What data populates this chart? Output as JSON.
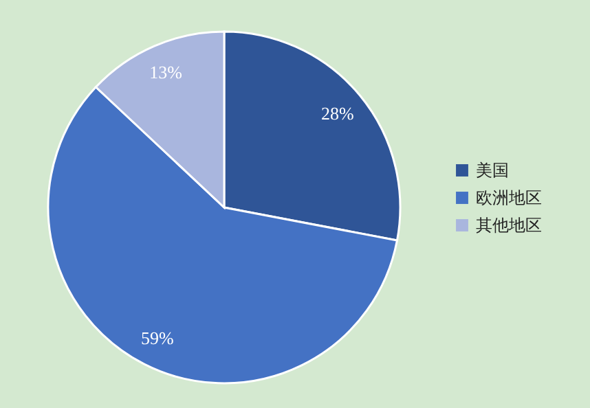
{
  "chart_data": {
    "type": "pie",
    "categories": [
      "美国",
      "欧洲地区",
      "其他地区"
    ],
    "values": [
      28,
      59,
      13
    ],
    "colors": [
      "#2f5597",
      "#4472c4",
      "#a9b6de"
    ],
    "value_labels": [
      "28%",
      "59%",
      "13%"
    ],
    "legend": "right"
  }
}
